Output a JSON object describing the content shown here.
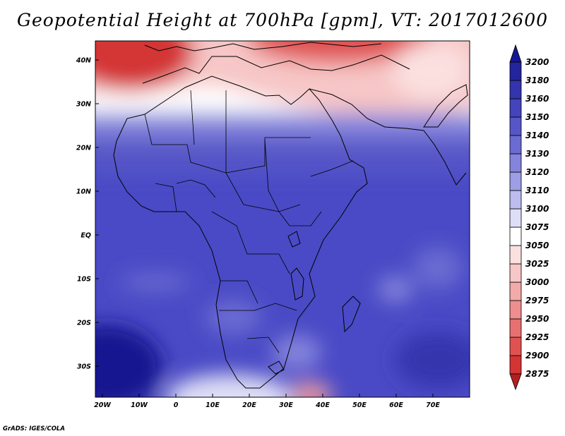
{
  "title": "Geopotential Height at 700hPa [gpm], VT: 2017012600",
  "credit": "GrADS: IGES/COLA",
  "map": {
    "lat_ticks": [
      "40N",
      "30N",
      "20N",
      "10N",
      "EQ",
      "10S",
      "20S",
      "30S"
    ],
    "lon_ticks": [
      "20W",
      "10W",
      "0",
      "10E",
      "20E",
      "30E",
      "40E",
      "50E",
      "60E",
      "70E"
    ]
  },
  "colorbar": {
    "levels": [
      "2875",
      "2900",
      "2925",
      "2950",
      "2975",
      "3000",
      "3025",
      "3050",
      "3075",
      "3100",
      "3110",
      "3120",
      "3130",
      "3140",
      "3150",
      "3160",
      "3180",
      "3200"
    ],
    "colors": [
      "#b41f1f",
      "#d43434",
      "#e05252",
      "#e87070",
      "#ee8e8e",
      "#f3aaaa",
      "#f7c6c6",
      "#fbe0e0",
      "#ffffff",
      "#dedef6",
      "#bcbcee",
      "#9e9ee6",
      "#8484dc",
      "#6b6bd2",
      "#5656c8",
      "#4444bc",
      "#3434ae",
      "#24249e",
      "#161690"
    ]
  }
}
